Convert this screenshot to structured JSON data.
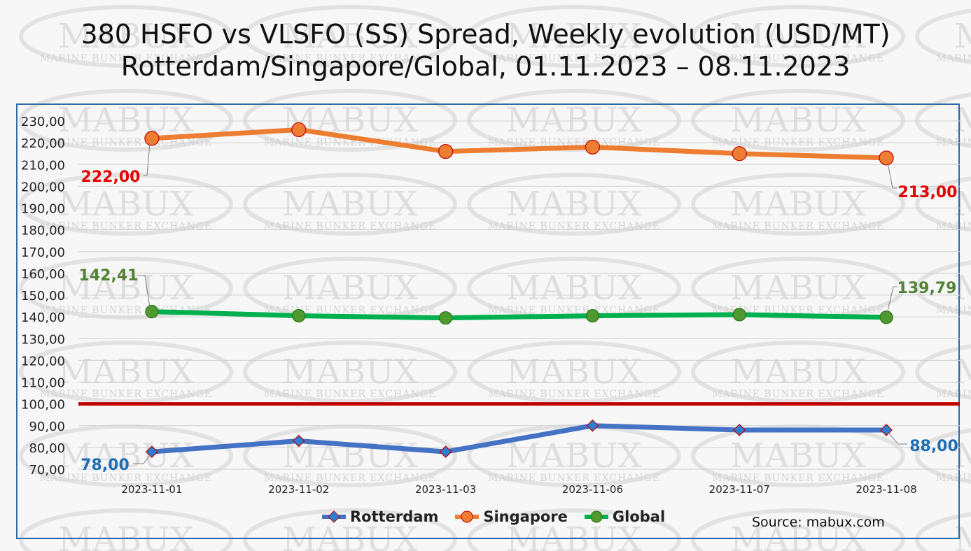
{
  "chart_data": {
    "type": "line",
    "title": "380 HSFO vs VLSFO (SS) Spread, Weekly evolution (USD/MT)",
    "subtitle": "Rotterdam/Singapore/Global, 01.11.2023 – 08.11.2023",
    "categories": [
      "2023-11-01",
      "2023-11-02",
      "2023-11-03",
      "2023-11-06",
      "2023-11-07",
      "2023-11-08"
    ],
    "ylim": [
      70,
      230
    ],
    "ytick_step": 10,
    "grid": true,
    "legend_position": "bottom",
    "reference_line": {
      "value": 100,
      "color": "#c00000"
    },
    "series": [
      {
        "name": "Rotterdam",
        "values": [
          78,
          83,
          78,
          90,
          88,
          88
        ],
        "color": "#4472c4",
        "marker": "diamond",
        "first_label": "78,00",
        "last_label": "88,00",
        "label_color": "#1f6fb5"
      },
      {
        "name": "Singapore",
        "values": [
          222,
          226,
          216,
          218,
          215,
          213
        ],
        "color": "#ed7d31",
        "marker": "circle",
        "first_label": "222,00",
        "last_label": "213,00",
        "label_color": "#e60000"
      },
      {
        "name": "Global",
        "values": [
          142.41,
          140.5,
          139.5,
          140.5,
          141,
          139.79
        ],
        "color": "#00b050",
        "marker": "circle",
        "first_label": "142,41",
        "last_label": "139,79",
        "label_color": "#548235"
      }
    ]
  },
  "watermark": {
    "main": "MABUX",
    "sub": "MARINE BUNKER EXCHANGE"
  },
  "source": "Source: mabux.com"
}
